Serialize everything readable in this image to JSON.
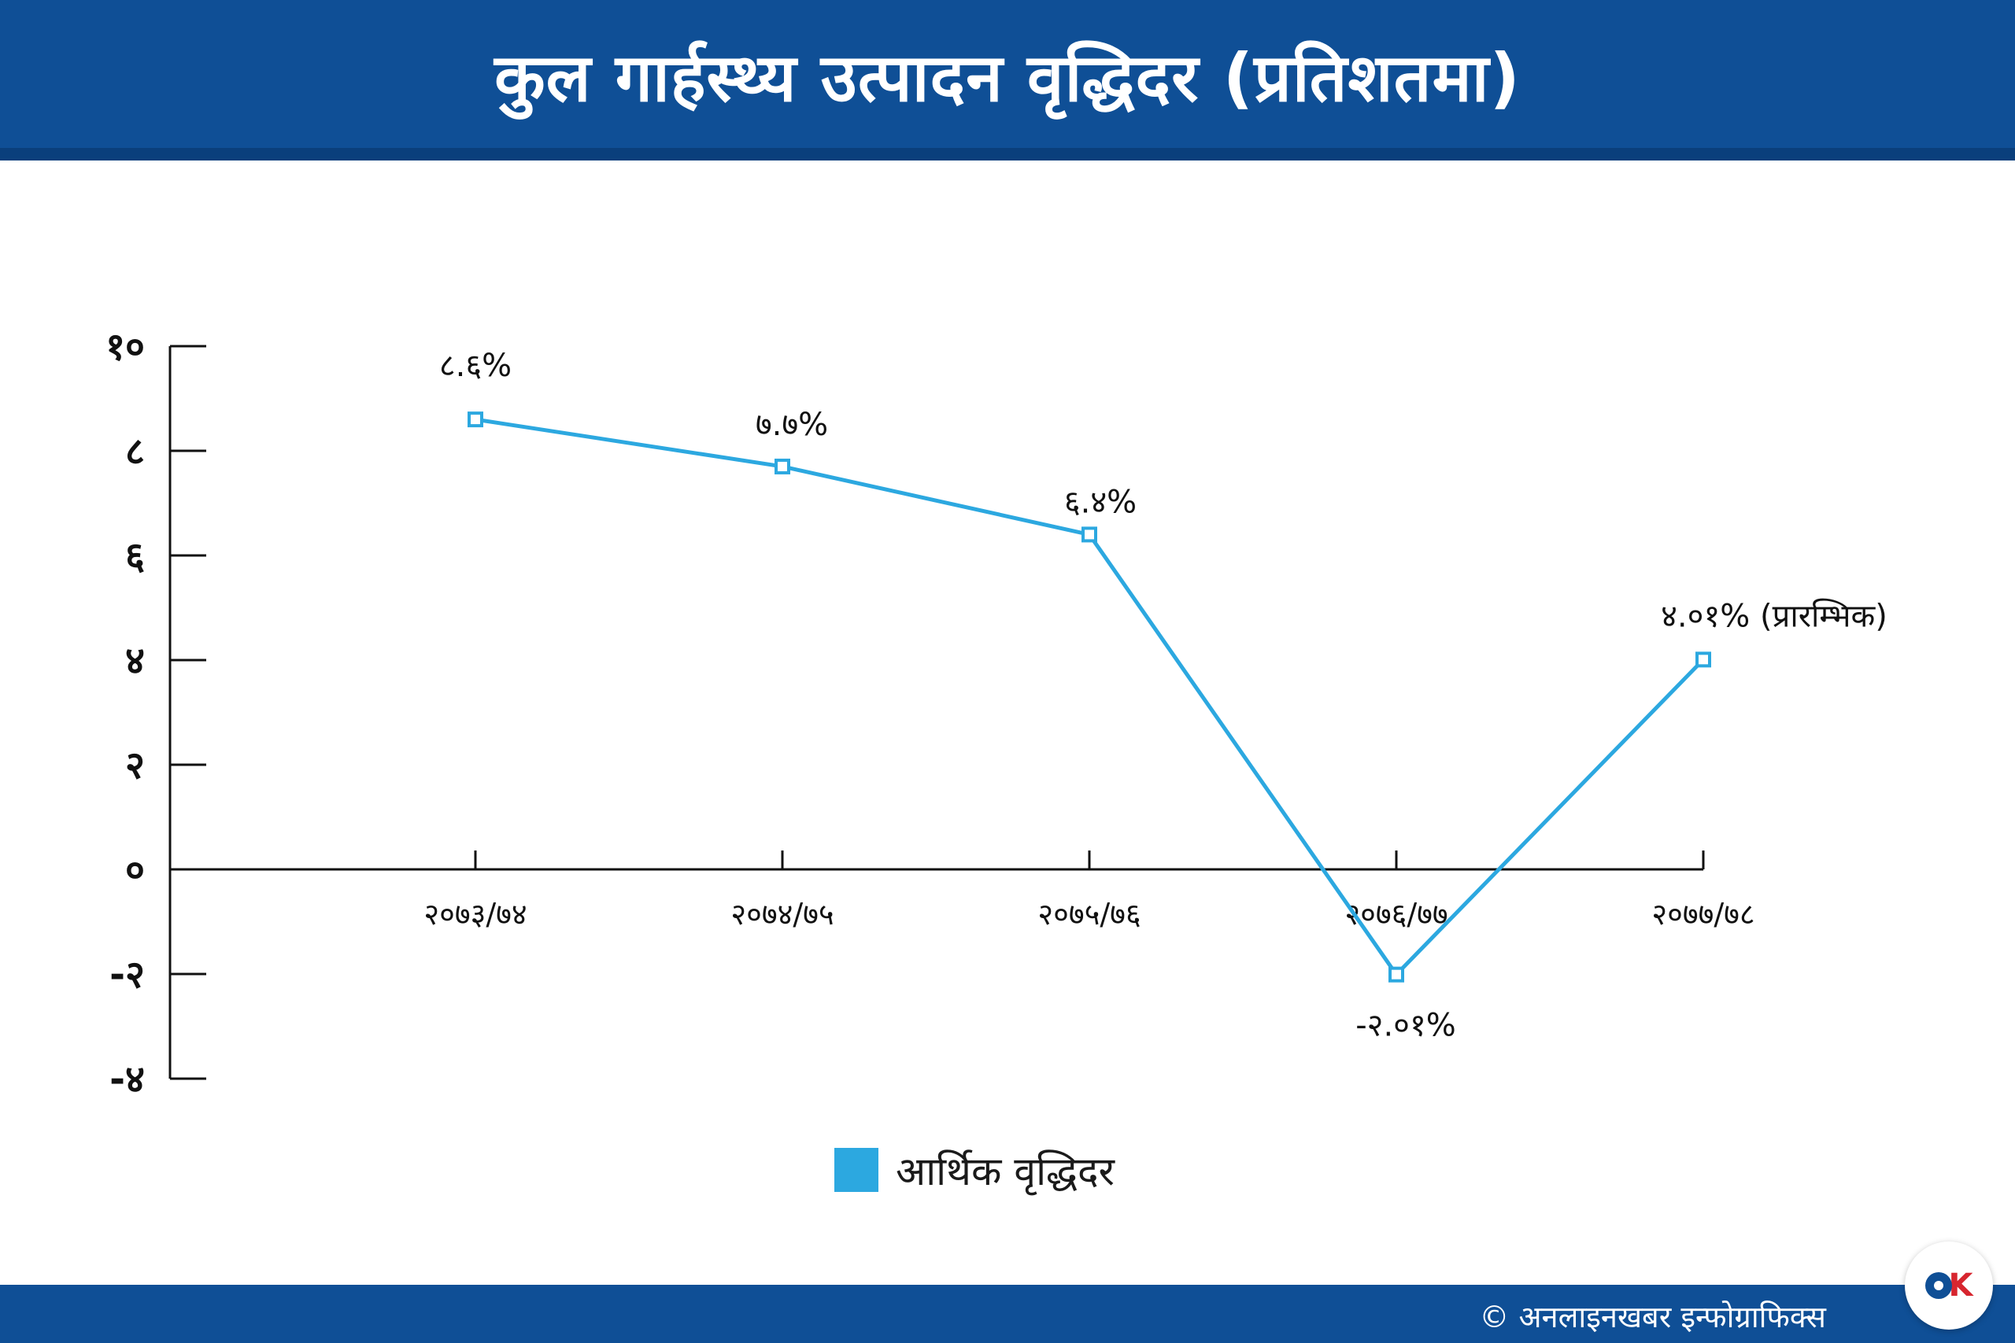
{
  "header": {
    "title": "कुल गार्हस्थ्य उत्पादन वृद्धिदर (प्रतिशतमा)"
  },
  "chart_data": {
    "type": "line",
    "title": "कुल गार्हस्थ्य उत्पादन वृद्धिदर (प्रतिशतमा)",
    "xlabel": "",
    "ylabel": "",
    "ylim": [
      -4,
      10
    ],
    "y_ticks": [
      10,
      8,
      6,
      4,
      2,
      0,
      -2,
      -4
    ],
    "y_tick_labels": [
      "१०",
      "८",
      "६",
      "४",
      "२",
      "०",
      "-२",
      "-४"
    ],
    "categories": [
      "२०७३/७४",
      "२०७४/७५",
      "२०७५/७६",
      "२०७६/७७",
      "२०७७/७८"
    ],
    "series": [
      {
        "name": "आर्थिक वृद्धिदर",
        "color": "#2ca8e0",
        "values": [
          8.6,
          7.7,
          6.4,
          -2.01,
          4.01
        ],
        "labels": [
          "८.६%",
          "७.७%",
          "६.४%",
          "-२.०१%",
          "४.०१% (प्रारम्भिक)"
        ]
      }
    ],
    "grid": false,
    "legend_position": "bottom-center"
  },
  "legend": {
    "label": "आर्थिक वृद्धिदर",
    "color": "#2ca8e0"
  },
  "footer": {
    "credit": "© अनलाइनखबर इन्फोग्राफिक्स"
  },
  "logo": {
    "text": "OK"
  }
}
